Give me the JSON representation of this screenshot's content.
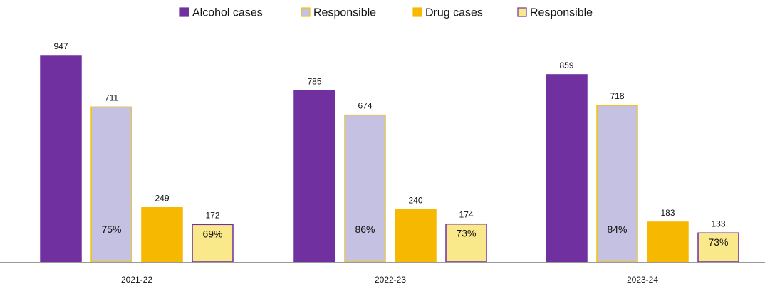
{
  "chart_data": {
    "type": "bar",
    "categories": [
      "2021-22",
      "2022-23",
      "2023-24"
    ],
    "series": [
      {
        "name": "Alcohol cases",
        "values": [
          947,
          785,
          859
        ],
        "color": "#7030a0",
        "border": "#7030a0"
      },
      {
        "name": "Responsible",
        "values": [
          711,
          674,
          718
        ],
        "color": "#c5c1e3",
        "border": "#f2c400",
        "percent_labels": [
          "75%",
          "86%",
          "84%"
        ]
      },
      {
        "name": "Drug cases",
        "values": [
          249,
          240,
          183
        ],
        "color": "#f6b800",
        "border": "#f6b800"
      },
      {
        "name": "Responsible",
        "values": [
          172,
          174,
          133
        ],
        "color": "#fae98a",
        "border": "#7030a0",
        "percent_labels": [
          "69%",
          "73%",
          "73%"
        ]
      }
    ],
    "ylim": [
      0,
      1000
    ],
    "grid": false,
    "legend_position": "top-center",
    "title": "",
    "xlabel": "",
    "ylabel": ""
  }
}
